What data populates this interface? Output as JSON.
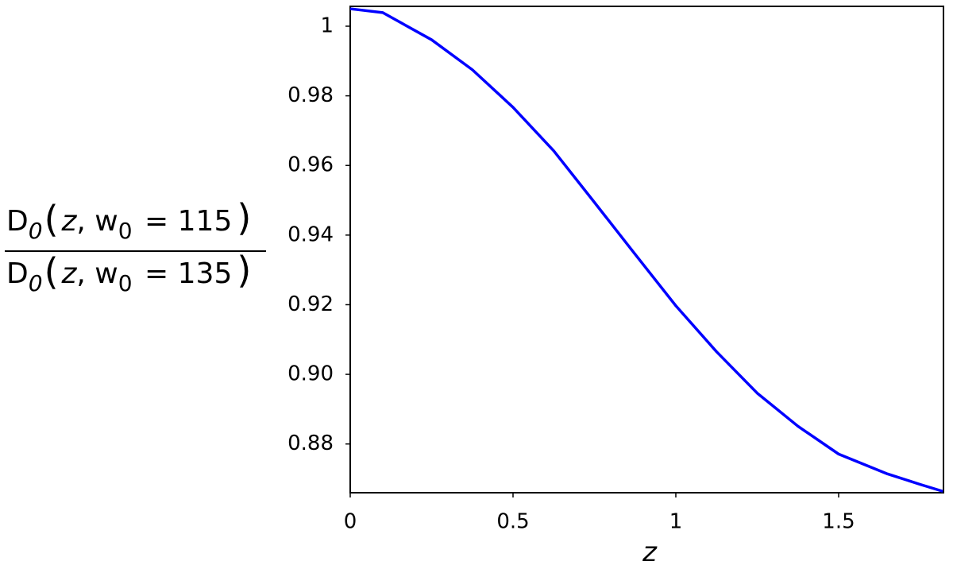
{
  "chart_data": {
    "type": "line",
    "ylabel_numerator": [
      "D",
      "0",
      "(",
      "z",
      ", w",
      "0",
      " = 115",
      ")"
    ],
    "ylabel_denominator": [
      "D",
      "0",
      "(",
      "z",
      ", w",
      "0",
      " = 135",
      ")"
    ],
    "xlabel": "z",
    "x": [
      0,
      0.1,
      0.25,
      0.375,
      0.5,
      0.625,
      0.75,
      0.875,
      1.0,
      1.125,
      1.25,
      1.375,
      1.5,
      1.65,
      1.75,
      1.82
    ],
    "values": [
      1.005,
      1.0039,
      0.9961,
      0.9875,
      0.9767,
      0.9642,
      0.9494,
      0.9345,
      0.9197,
      0.9065,
      0.8946,
      0.8851,
      0.8771,
      0.8714,
      0.8684,
      0.8664
    ],
    "color": "#0000ff",
    "xlim": [
      0,
      1.822
    ],
    "xticks": [
      0,
      0.5,
      1,
      1.5
    ],
    "ylim": [
      0.866,
      1.0057
    ],
    "yticks": [
      {
        "value": 0.88,
        "label": "0.88"
      },
      {
        "value": 0.9,
        "label": "0.90"
      },
      {
        "value": 0.92,
        "label": "0.92"
      },
      {
        "value": 0.94,
        "label": "0.94"
      },
      {
        "value": 0.96,
        "label": "0.96"
      },
      {
        "value": 0.98,
        "label": "0.98"
      },
      1
    ]
  }
}
